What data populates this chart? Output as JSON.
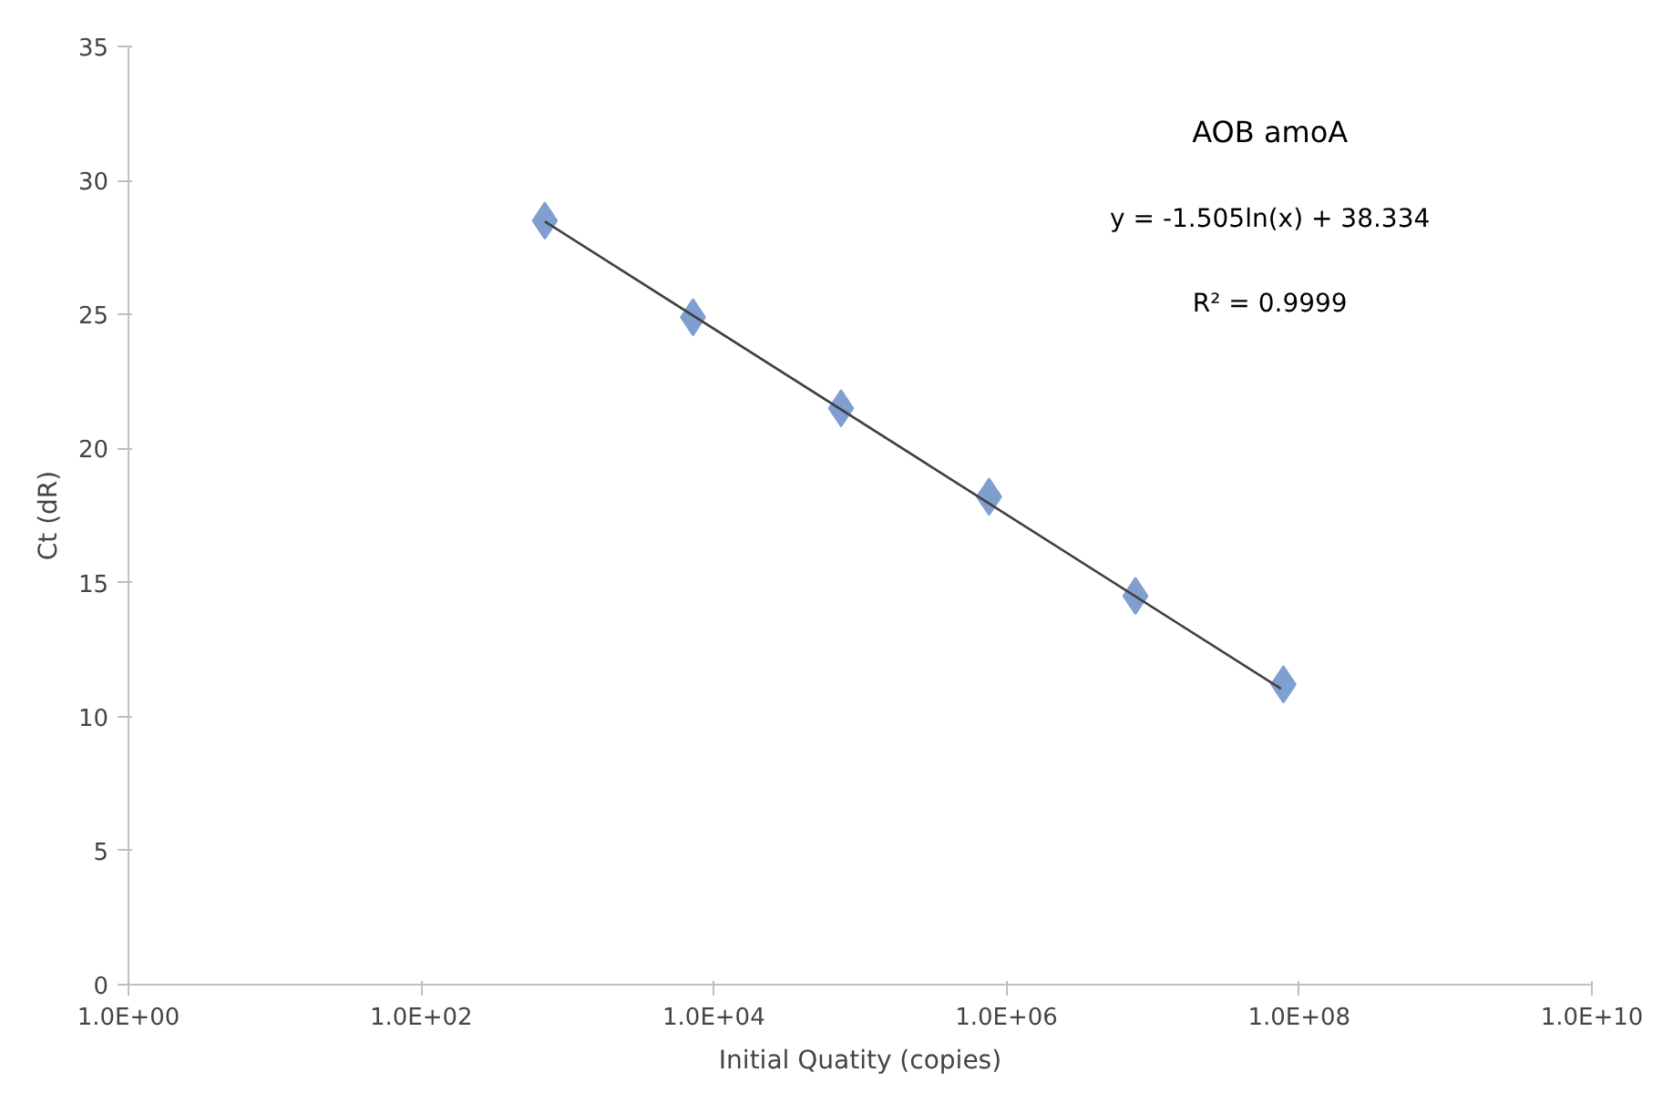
{
  "chart_data": {
    "type": "scatter",
    "xlabel": "Initial Quatity (copies)",
    "ylabel": "Ct (dR)",
    "log": "x",
    "grid": false,
    "xlim": [
      1,
      10000000000
    ],
    "xticks": [
      {
        "value": 1,
        "label": "1.0E+00"
      },
      {
        "value": 100,
        "label": "1.0E+02"
      },
      {
        "value": 10000,
        "label": "1.0E+04"
      },
      {
        "value": 1000000,
        "label": "1.0E+06"
      },
      {
        "value": 100000000,
        "label": "1.0E+08"
      },
      {
        "value": 10000000000,
        "label": "1.0E+10"
      }
    ],
    "ylim": [
      0,
      35
    ],
    "yticks": [
      0,
      5,
      10,
      15,
      20,
      25,
      30,
      35
    ],
    "series": [
      {
        "marker": "diamond",
        "color": "#7f9fd0",
        "x": [
          700,
          7200,
          74000,
          760000,
          7600000,
          78000000
        ],
        "values": [
          28.5,
          24.9,
          21.5,
          18.2,
          14.5,
          11.2
        ]
      },
      {
        "type": "line",
        "color": "#404040",
        "x": [
          700,
          75000000
        ],
        "values": [
          28.47,
          11.04
        ]
      }
    ],
    "annotations": [
      "AOB amoA",
      "y = -1.505ln(x) + 38.334",
      "R² = 0.9999"
    ]
  }
}
